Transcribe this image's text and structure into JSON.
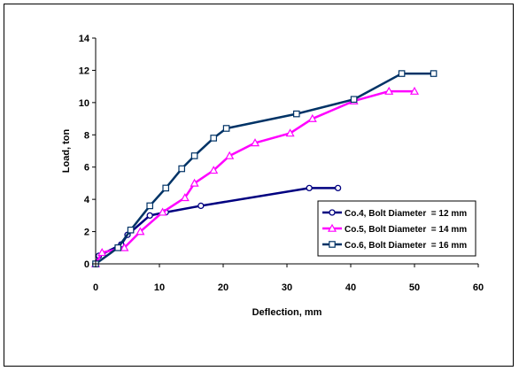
{
  "chart_data": {
    "type": "line",
    "title": "",
    "xlabel": "Deflection, mm",
    "ylabel": "Load, ton",
    "xlim": [
      0,
      60
    ],
    "ylim": [
      0,
      14
    ],
    "xticks": [
      "0",
      "10",
      "20",
      "30",
      "40",
      "50",
      "60"
    ],
    "yticks": [
      "0",
      "2",
      "4",
      "6",
      "8",
      "10",
      "12",
      "14"
    ],
    "grid": false,
    "legend_position": "bottom-right",
    "series": [
      {
        "name": "Co.4, Bolt Diameter  = 12 mm",
        "color": "#000080",
        "marker": "circle",
        "x": [
          0,
          0.5,
          4,
          5,
          8.5,
          11,
          16.5,
          33.5,
          38
        ],
        "y": [
          0,
          0.5,
          1.2,
          1.8,
          3.0,
          3.2,
          3.6,
          4.7,
          4.7
        ]
      },
      {
        "name": "Co.5, Bolt Diameter  = 14 mm",
        "color": "#FF00FF",
        "marker": "triangle",
        "x": [
          0,
          1,
          4.5,
          7,
          10.5,
          14,
          15.5,
          18.5,
          21,
          25,
          30.5,
          34,
          40.5,
          46,
          50
        ],
        "y": [
          0,
          0.7,
          1.0,
          2.0,
          3.2,
          4.1,
          5.0,
          5.8,
          6.7,
          7.5,
          8.1,
          9.0,
          10.1,
          10.7,
          10.7
        ]
      },
      {
        "name": "Co.6, Bolt Diameter  = 16 mm",
        "color": "#003366",
        "marker": "square",
        "x": [
          0,
          3.5,
          5.5,
          8.5,
          11,
          13.5,
          15.5,
          18.5,
          20.5,
          31.5,
          40.5,
          48,
          53
        ],
        "y": [
          0,
          1.0,
          2.1,
          3.6,
          4.7,
          5.9,
          6.7,
          7.8,
          8.4,
          9.3,
          10.2,
          11.8,
          11.8
        ]
      }
    ]
  }
}
